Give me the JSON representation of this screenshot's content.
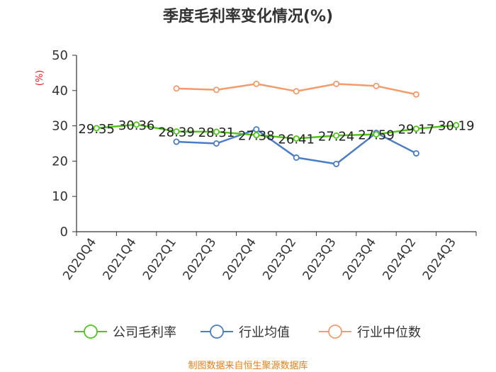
{
  "chart_data": {
    "type": "line",
    "title": "季度毛利率变化情况(%)",
    "ylabel": "(%)",
    "ylim": [
      0,
      50
    ],
    "yticks": [
      0,
      10,
      20,
      30,
      40,
      50
    ],
    "categories": [
      "2020Q4",
      "2021Q4",
      "2022Q1",
      "2022Q3",
      "2022Q4",
      "2023Q2",
      "2023Q3",
      "2023Q4",
      "2024Q2",
      "2024Q3"
    ],
    "legend_position": "bottom",
    "grid": false,
    "series": [
      {
        "name": "公司毛利率",
        "color": "#52c41a",
        "values": [
          29.35,
          30.36,
          28.39,
          28.31,
          27.38,
          26.41,
          27.24,
          27.59,
          29.17,
          30.19
        ],
        "labels": [
          "29.35",
          "30.36",
          "28.39",
          "28.31",
          "27.38",
          "26.41",
          "27.24",
          "27.59",
          "29.17",
          "30.19"
        ]
      },
      {
        "name": "行业均值",
        "color": "#4a7cc7",
        "values": [
          null,
          null,
          25.5,
          25.0,
          29.0,
          21.0,
          19.2,
          28.0,
          22.2,
          null
        ]
      },
      {
        "name": "行业中位数",
        "color": "#f59a6a",
        "values": [
          null,
          null,
          40.6,
          40.2,
          41.9,
          39.8,
          41.9,
          41.3,
          38.9,
          null
        ]
      }
    ]
  },
  "source": "制图数据来自恒生聚源数据库"
}
